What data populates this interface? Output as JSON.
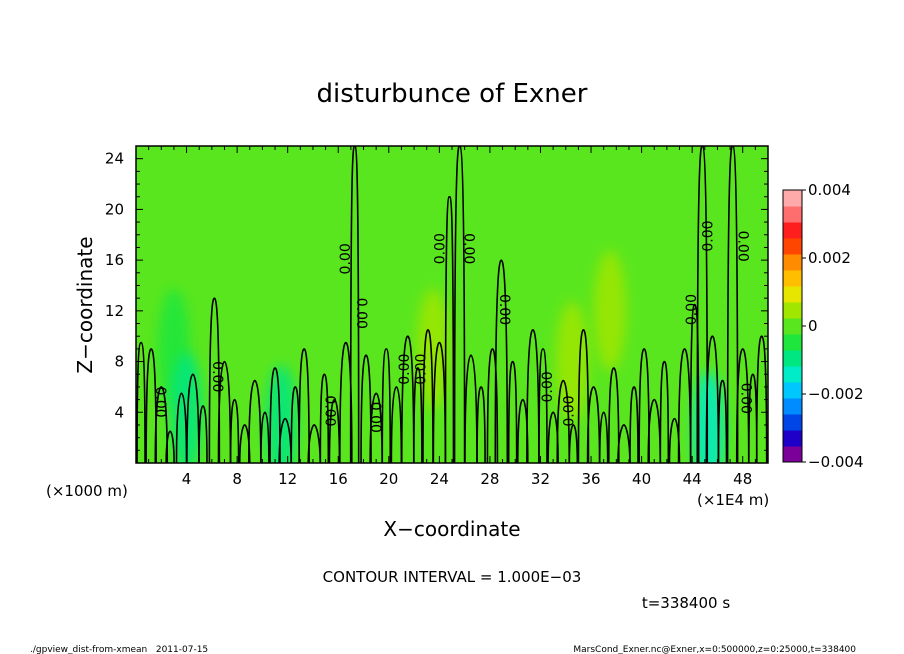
{
  "chart_data": {
    "type": "heatmap",
    "title": "disturbunce of Exner",
    "xlabel": "X−coordinate",
    "ylabel": "Z−coordinate",
    "x_unit_left": "(×1000 m)",
    "x_unit_right": "(×1E4 m)",
    "xlim": [
      0,
      50
    ],
    "ylim": [
      0,
      25
    ],
    "x_ticks": [
      4,
      8,
      12,
      16,
      20,
      24,
      28,
      32,
      36,
      40,
      44,
      48
    ],
    "y_ticks": [
      4,
      8,
      12,
      16,
      20,
      24
    ],
    "contour_interval_text": "CONTOUR INTERVAL = 1.000E−03",
    "time_text": "t=338400 s",
    "footer_left": "./gpview_dist-from-xmean   2011-07-15",
    "footer_right": "MarsCond_Exner.nc@Exner,x=0:500000,z=0:25000,t=338400",
    "contour_label_text": "0.00",
    "colorbar": {
      "range": [
        -0.004,
        0.004
      ],
      "tick_labels": [
        "0.004",
        "0.002",
        "0",
        "−0.002",
        "−0.004"
      ],
      "tick_values": [
        0.004,
        0.002,
        0,
        -0.002,
        -0.004
      ],
      "colors": [
        "#7a0099",
        "#1f00c8",
        "#0046e6",
        "#008cff",
        "#00c8ff",
        "#00ebc8",
        "#00e680",
        "#1ee63c",
        "#5ae61e",
        "#a0e600",
        "#e6e600",
        "#ffbe00",
        "#ff8c00",
        "#ff4600",
        "#ff1e1e",
        "#ff6e6e",
        "#ffaaaa"
      ]
    },
    "background_level": 0.0,
    "anomalies": [
      {
        "x": 3.0,
        "z": 9.0,
        "value": -0.0006
      },
      {
        "x": 4.0,
        "z": 4.0,
        "value": -0.0008
      },
      {
        "x": 11.5,
        "z": 3.0,
        "value": -0.001
      },
      {
        "x": 45.3,
        "z": 2.5,
        "value": -0.0012
      },
      {
        "x": 37.5,
        "z": 12.0,
        "value": 0.0004
      },
      {
        "x": 23.5,
        "z": 9.0,
        "value": 0.0003
      },
      {
        "x": 34.5,
        "z": 8.0,
        "value": 0.0003
      }
    ],
    "contour_labels": [
      {
        "x": 1.9,
        "z": 4.8,
        "rotated": true
      },
      {
        "x": 6.4,
        "z": 6.8,
        "rotated": true
      },
      {
        "x": 15.3,
        "z": 4.1,
        "rotated": true
      },
      {
        "x": 16.6,
        "z": 16.1,
        "rotated": false
      },
      {
        "x": 17.8,
        "z": 11.8,
        "rotated": true
      },
      {
        "x": 18.9,
        "z": 3.6,
        "rotated": true
      },
      {
        "x": 21.3,
        "z": 7.4,
        "rotated": false
      },
      {
        "x": 22.6,
        "z": 7.4,
        "rotated": false
      },
      {
        "x": 24.1,
        "z": 16.9,
        "rotated": false
      },
      {
        "x": 26.3,
        "z": 16.9,
        "rotated": true
      },
      {
        "x": 29.1,
        "z": 12.1,
        "rotated": true
      },
      {
        "x": 32.6,
        "z": 6.0,
        "rotated": false
      },
      {
        "x": 34.3,
        "z": 4.1,
        "rotated": false
      },
      {
        "x": 44.0,
        "z": 12.1,
        "rotated": false
      },
      {
        "x": 45.3,
        "z": 17.9,
        "rotated": false
      },
      {
        "x": 48.0,
        "z": 17.1,
        "rotated": true
      },
      {
        "x": 48.2,
        "z": 5.1,
        "rotated": true
      }
    ],
    "contour_columns": [
      {
        "x": 0.4,
        "top": 9.5
      },
      {
        "x": 1.2,
        "top": 9.0
      },
      {
        "x": 2.0,
        "top": 6.0
      },
      {
        "x": 2.7,
        "top": 2.5
      },
      {
        "x": 3.6,
        "top": 5.5
      },
      {
        "x": 4.5,
        "top": 7.0
      },
      {
        "x": 5.3,
        "top": 4.5
      },
      {
        "x": 6.2,
        "top": 13.0
      },
      {
        "x": 7.0,
        "top": 8.0
      },
      {
        "x": 7.8,
        "top": 5.0
      },
      {
        "x": 8.6,
        "top": 3.0
      },
      {
        "x": 9.4,
        "top": 6.5
      },
      {
        "x": 10.2,
        "top": 4.0
      },
      {
        "x": 11.0,
        "top": 7.5
      },
      {
        "x": 11.8,
        "top": 3.5
      },
      {
        "x": 12.6,
        "top": 6.0
      },
      {
        "x": 13.3,
        "top": 9.0
      },
      {
        "x": 14.1,
        "top": 3.0
      },
      {
        "x": 14.9,
        "top": 7.0
      },
      {
        "x": 15.7,
        "top": 5.0
      },
      {
        "x": 16.6,
        "top": 9.5
      },
      {
        "x": 17.3,
        "top": 25.0
      },
      {
        "x": 18.2,
        "top": 8.5
      },
      {
        "x": 19.0,
        "top": 5.5
      },
      {
        "x": 19.8,
        "top": 9.0
      },
      {
        "x": 20.6,
        "top": 6.0
      },
      {
        "x": 21.5,
        "top": 10.0
      },
      {
        "x": 22.3,
        "top": 7.5
      },
      {
        "x": 23.1,
        "top": 10.5
      },
      {
        "x": 24.0,
        "top": 9.5
      },
      {
        "x": 24.8,
        "top": 21.0
      },
      {
        "x": 25.6,
        "top": 25.0
      },
      {
        "x": 26.5,
        "top": 8.5
      },
      {
        "x": 27.3,
        "top": 6.0
      },
      {
        "x": 28.2,
        "top": 9.0
      },
      {
        "x": 28.9,
        "top": 16.0
      },
      {
        "x": 29.8,
        "top": 8.0
      },
      {
        "x": 30.6,
        "top": 5.0
      },
      {
        "x": 31.4,
        "top": 10.5
      },
      {
        "x": 32.2,
        "top": 9.0
      },
      {
        "x": 33.0,
        "top": 4.0
      },
      {
        "x": 33.8,
        "top": 6.5
      },
      {
        "x": 34.6,
        "top": 3.0
      },
      {
        "x": 35.4,
        "top": 10.5
      },
      {
        "x": 36.2,
        "top": 6.0
      },
      {
        "x": 37.0,
        "top": 4.0
      },
      {
        "x": 37.8,
        "top": 7.5
      },
      {
        "x": 38.6,
        "top": 3.0
      },
      {
        "x": 39.4,
        "top": 6.0
      },
      {
        "x": 40.2,
        "top": 9.0
      },
      {
        "x": 41.0,
        "top": 5.0
      },
      {
        "x": 41.8,
        "top": 8.0
      },
      {
        "x": 42.6,
        "top": 3.5
      },
      {
        "x": 43.4,
        "top": 9.0
      },
      {
        "x": 44.2,
        "top": 12.5
      },
      {
        "x": 44.8,
        "top": 25.0
      },
      {
        "x": 45.6,
        "top": 10.0
      },
      {
        "x": 46.4,
        "top": 6.5
      },
      {
        "x": 47.2,
        "top": 25.0
      },
      {
        "x": 48.0,
        "top": 9.0
      },
      {
        "x": 48.8,
        "top": 7.0
      },
      {
        "x": 49.5,
        "top": 10.0
      }
    ]
  }
}
